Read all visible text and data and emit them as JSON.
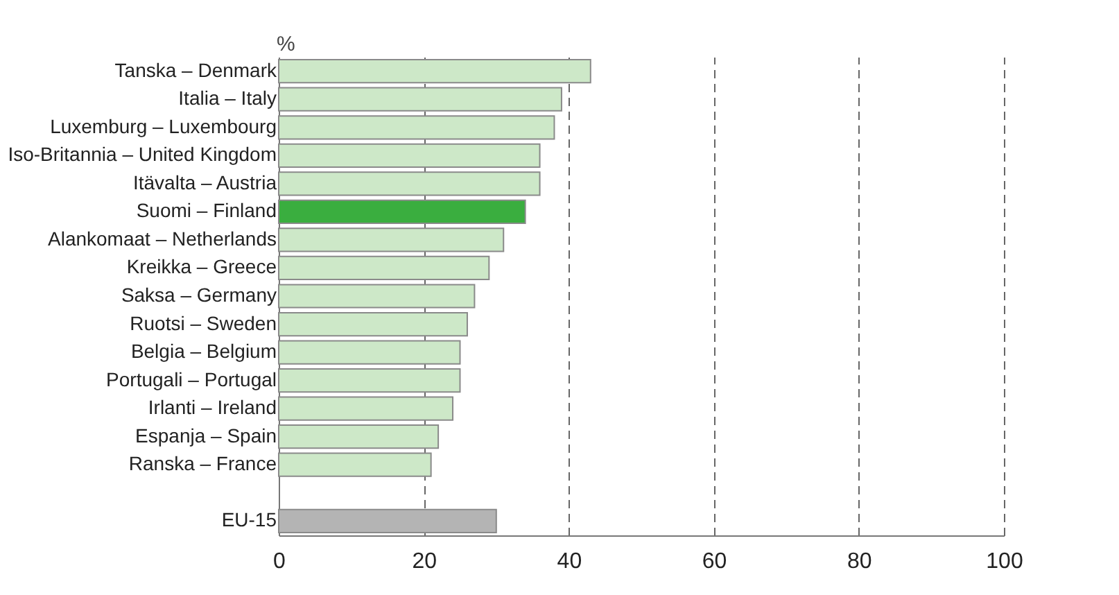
{
  "chart_data": {
    "type": "bar",
    "orientation": "horizontal",
    "xlabel": "%",
    "categories": [
      "Tanska – Denmark",
      "Italia – Italy",
      "Luxemburg – Luxembourg",
      "Iso-Britannia – United Kingdom",
      "Itävalta – Austria",
      "Suomi – Finland",
      "Alankomaat – Netherlands",
      "Kreikka – Greece",
      "Saksa – Germany",
      "Ruotsi – Sweden",
      "Belgia – Belgium",
      "Portugali – Portugal",
      "Irlanti – Ireland",
      "Espanja – Spain",
      "Ranska – France",
      null,
      "EU-15"
    ],
    "values": [
      43,
      39,
      38,
      36,
      36,
      34,
      31,
      29,
      27,
      26,
      25,
      25,
      24,
      22,
      21,
      null,
      30
    ],
    "colors": [
      "#cde8c8",
      "#cde8c8",
      "#cde8c8",
      "#cde8c8",
      "#cde8c8",
      "#3aae3f",
      "#cde8c8",
      "#cde8c8",
      "#cde8c8",
      "#cde8c8",
      "#cde8c8",
      "#cde8c8",
      "#cde8c8",
      "#cde8c8",
      "#cde8c8",
      "#cde8c8",
      "#b4b4b4"
    ],
    "xlim": [
      0,
      100
    ],
    "xticks": [
      0,
      20,
      40,
      60,
      80,
      100
    ],
    "grid": "x"
  }
}
